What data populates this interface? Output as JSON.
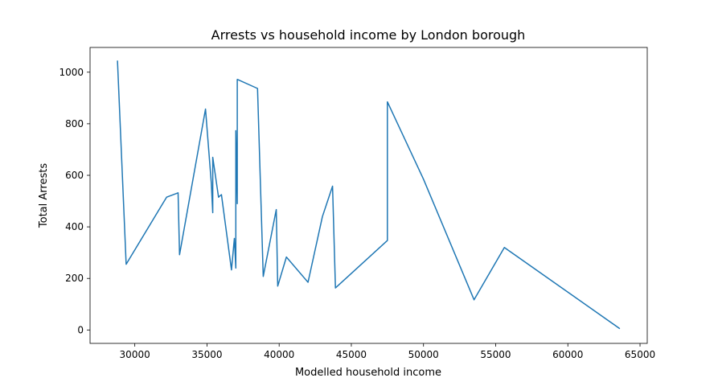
{
  "chart_data": {
    "type": "line",
    "title": "Arrests vs household income by London borough",
    "xlabel": "Modelled household income",
    "ylabel": "Total Arrests",
    "xlim": [
      26900,
      65500
    ],
    "ylim": [
      -52,
      1096
    ],
    "x_ticks": [
      30000,
      35000,
      40000,
      45000,
      50000,
      55000,
      60000,
      65000
    ],
    "y_ticks": [
      0,
      200,
      400,
      600,
      800,
      1000
    ],
    "x_tick_labels": [
      "30000",
      "35000",
      "40000",
      "45000",
      "50000",
      "55000",
      "60000",
      "65000"
    ],
    "y_tick_labels": [
      "0",
      "200",
      "400",
      "600",
      "800",
      "1000"
    ],
    "grid": false,
    "color": "#1f77b4",
    "series": [
      {
        "x": [
          28800,
          29400,
          32200,
          33000,
          33100,
          34900,
          35300,
          35400,
          35400,
          35800,
          36000,
          36700,
          36900,
          37000,
          37000,
          37100,
          37100,
          38500,
          38900,
          39800,
          39900,
          40500,
          42000,
          43000,
          43700,
          43900,
          47500,
          47500,
          50000,
          53500,
          55600,
          63600
        ],
        "y": [
          1045,
          255,
          515,
          532,
          292,
          857,
          570,
          455,
          670,
          515,
          525,
          233,
          355,
          240,
          773,
          490,
          972,
          937,
          208,
          467,
          170,
          283,
          185,
          440,
          558,
          163,
          347,
          885,
          585,
          117,
          320,
          5
        ]
      }
    ]
  }
}
